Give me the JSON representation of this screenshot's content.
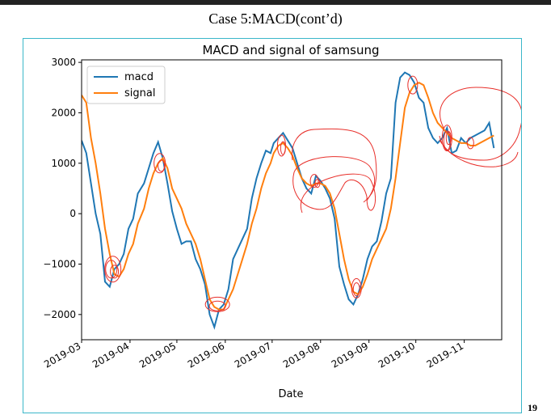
{
  "slide": {
    "title": "Case 5:MACD(cont’d)",
    "page_number": "19"
  },
  "chart_data": {
    "type": "line",
    "title": "MACD and signal of samsung",
    "xlabel": "Date",
    "ylabel": "",
    "xlim": [
      "2019-03-01",
      "2019-11-25"
    ],
    "ylim": [
      -2500,
      3050
    ],
    "x_tick_labels": [
      "2019-03",
      "2019-04",
      "2019-05",
      "2019-06",
      "2019-07",
      "2019-08",
      "2019-09",
      "2019-10",
      "2019-11"
    ],
    "x_ticks": [
      "2019-03-01",
      "2019-04-01",
      "2019-05-01",
      "2019-06-01",
      "2019-07-01",
      "2019-08-01",
      "2019-09-01",
      "2019-10-01",
      "2019-11-01"
    ],
    "y_ticks": [
      3000,
      2000,
      1000,
      0,
      -1000,
      -2000
    ],
    "y_tick_labels": [
      "3000",
      "2000",
      "1000",
      "0",
      "−1000",
      "−2000"
    ],
    "grid": false,
    "legend_position": "top-left",
    "series": [
      {
        "name": "macd",
        "color": "#1f77b4",
        "points": [
          [
            "2019-03-01",
            1450
          ],
          [
            "2019-03-04",
            1200
          ],
          [
            "2019-03-07",
            600
          ],
          [
            "2019-03-10",
            0
          ],
          [
            "2019-03-13",
            -400
          ],
          [
            "2019-03-16",
            -1350
          ],
          [
            "2019-03-19",
            -1450
          ],
          [
            "2019-03-22",
            -1100
          ],
          [
            "2019-03-25",
            -1000
          ],
          [
            "2019-03-28",
            -800
          ],
          [
            "2019-03-31",
            -300
          ],
          [
            "2019-04-03",
            -100
          ],
          [
            "2019-04-06",
            400
          ],
          [
            "2019-04-10",
            600
          ],
          [
            "2019-04-13",
            900
          ],
          [
            "2019-04-16",
            1200
          ],
          [
            "2019-04-19",
            1420
          ],
          [
            "2019-04-22",
            1100
          ],
          [
            "2019-04-25",
            600
          ],
          [
            "2019-04-28",
            50
          ],
          [
            "2019-05-01",
            -300
          ],
          [
            "2019-05-04",
            -600
          ],
          [
            "2019-05-07",
            -550
          ],
          [
            "2019-05-10",
            -550
          ],
          [
            "2019-05-13",
            -900
          ],
          [
            "2019-05-16",
            -1100
          ],
          [
            "2019-05-19",
            -1400
          ],
          [
            "2019-05-22",
            -2000
          ],
          [
            "2019-05-25",
            -2250
          ],
          [
            "2019-05-28",
            -1900
          ],
          [
            "2019-05-31",
            -1800
          ],
          [
            "2019-06-03",
            -1500
          ],
          [
            "2019-06-06",
            -900
          ],
          [
            "2019-06-09",
            -700
          ],
          [
            "2019-06-12",
            -500
          ],
          [
            "2019-06-15",
            -300
          ],
          [
            "2019-06-18",
            300
          ],
          [
            "2019-06-21",
            700
          ],
          [
            "2019-06-24",
            1000
          ],
          [
            "2019-06-27",
            1250
          ],
          [
            "2019-06-30",
            1200
          ],
          [
            "2019-07-02",
            1400
          ],
          [
            "2019-07-05",
            1500
          ],
          [
            "2019-07-08",
            1600
          ],
          [
            "2019-07-11",
            1450
          ],
          [
            "2019-07-14",
            1300
          ],
          [
            "2019-07-17",
            1000
          ],
          [
            "2019-07-20",
            700
          ],
          [
            "2019-07-23",
            500
          ],
          [
            "2019-07-26",
            400
          ],
          [
            "2019-07-29",
            750
          ],
          [
            "2019-08-01",
            650
          ],
          [
            "2019-08-04",
            500
          ],
          [
            "2019-08-07",
            300
          ],
          [
            "2019-08-10",
            -100
          ],
          [
            "2019-08-13",
            -1050
          ],
          [
            "2019-08-16",
            -1400
          ],
          [
            "2019-08-19",
            -1700
          ],
          [
            "2019-08-22",
            -1800
          ],
          [
            "2019-08-25",
            -1600
          ],
          [
            "2019-08-28",
            -1300
          ],
          [
            "2019-08-31",
            -900
          ],
          [
            "2019-09-03",
            -650
          ],
          [
            "2019-09-06",
            -550
          ],
          [
            "2019-09-09",
            -150
          ],
          [
            "2019-09-12",
            400
          ],
          [
            "2019-09-15",
            700
          ],
          [
            "2019-09-18",
            2200
          ],
          [
            "2019-09-21",
            2700
          ],
          [
            "2019-09-24",
            2800
          ],
          [
            "2019-09-27",
            2750
          ],
          [
            "2019-09-30",
            2600
          ],
          [
            "2019-10-03",
            2300
          ],
          [
            "2019-10-06",
            2200
          ],
          [
            "2019-10-09",
            1700
          ],
          [
            "2019-10-12",
            1500
          ],
          [
            "2019-10-15",
            1400
          ],
          [
            "2019-10-18",
            1500
          ],
          [
            "2019-10-21",
            1700
          ],
          [
            "2019-10-24",
            1200
          ],
          [
            "2019-10-27",
            1250
          ],
          [
            "2019-10-30",
            1500
          ],
          [
            "2019-11-02",
            1400
          ],
          [
            "2019-11-05",
            1500
          ],
          [
            "2019-11-08",
            1550
          ],
          [
            "2019-11-11",
            1600
          ],
          [
            "2019-11-14",
            1650
          ],
          [
            "2019-11-17",
            1800
          ],
          [
            "2019-11-20",
            1300
          ]
        ]
      },
      {
        "name": "signal",
        "color": "#ff7f0e",
        "points": [
          [
            "2019-03-01",
            2350
          ],
          [
            "2019-03-04",
            2200
          ],
          [
            "2019-03-07",
            1500
          ],
          [
            "2019-03-10",
            1000
          ],
          [
            "2019-03-13",
            400
          ],
          [
            "2019-03-16",
            -300
          ],
          [
            "2019-03-19",
            -800
          ],
          [
            "2019-03-22",
            -1200
          ],
          [
            "2019-03-25",
            -1250
          ],
          [
            "2019-03-28",
            -1100
          ],
          [
            "2019-03-31",
            -800
          ],
          [
            "2019-04-03",
            -600
          ],
          [
            "2019-04-06",
            -200
          ],
          [
            "2019-04-10",
            100
          ],
          [
            "2019-04-13",
            500
          ],
          [
            "2019-04-16",
            800
          ],
          [
            "2019-04-19",
            1000
          ],
          [
            "2019-04-22",
            1100
          ],
          [
            "2019-04-25",
            900
          ],
          [
            "2019-04-28",
            500
          ],
          [
            "2019-05-01",
            300
          ],
          [
            "2019-05-04",
            100
          ],
          [
            "2019-05-07",
            -200
          ],
          [
            "2019-05-10",
            -400
          ],
          [
            "2019-05-13",
            -600
          ],
          [
            "2019-05-16",
            -900
          ],
          [
            "2019-05-19",
            -1300
          ],
          [
            "2019-05-22",
            -1700
          ],
          [
            "2019-05-25",
            -1850
          ],
          [
            "2019-05-28",
            -1900
          ],
          [
            "2019-05-31",
            -1900
          ],
          [
            "2019-06-03",
            -1700
          ],
          [
            "2019-06-06",
            -1500
          ],
          [
            "2019-06-09",
            -1200
          ],
          [
            "2019-06-12",
            -900
          ],
          [
            "2019-06-15",
            -600
          ],
          [
            "2019-06-18",
            -200
          ],
          [
            "2019-06-21",
            100
          ],
          [
            "2019-06-24",
            500
          ],
          [
            "2019-06-27",
            800
          ],
          [
            "2019-06-30",
            1000
          ],
          [
            "2019-07-02",
            1200
          ],
          [
            "2019-07-05",
            1350
          ],
          [
            "2019-07-08",
            1400
          ],
          [
            "2019-07-11",
            1300
          ],
          [
            "2019-07-14",
            1150
          ],
          [
            "2019-07-17",
            900
          ],
          [
            "2019-07-20",
            700
          ],
          [
            "2019-07-23",
            600
          ],
          [
            "2019-07-26",
            550
          ],
          [
            "2019-07-29",
            600
          ],
          [
            "2019-08-01",
            600
          ],
          [
            "2019-08-04",
            550
          ],
          [
            "2019-08-07",
            400
          ],
          [
            "2019-08-10",
            100
          ],
          [
            "2019-08-13",
            -400
          ],
          [
            "2019-08-16",
            -900
          ],
          [
            "2019-08-19",
            -1300
          ],
          [
            "2019-08-22",
            -1550
          ],
          [
            "2019-08-25",
            -1600
          ],
          [
            "2019-08-28",
            -1450
          ],
          [
            "2019-08-31",
            -1200
          ],
          [
            "2019-09-03",
            -900
          ],
          [
            "2019-09-06",
            -700
          ],
          [
            "2019-09-09",
            -500
          ],
          [
            "2019-09-12",
            -300
          ],
          [
            "2019-09-15",
            100
          ],
          [
            "2019-09-18",
            700
          ],
          [
            "2019-09-21",
            1400
          ],
          [
            "2019-09-24",
            2100
          ],
          [
            "2019-09-27",
            2400
          ],
          [
            "2019-09-30",
            2550
          ],
          [
            "2019-10-03",
            2600
          ],
          [
            "2019-10-06",
            2550
          ],
          [
            "2019-10-09",
            2300
          ],
          [
            "2019-10-12",
            2000
          ],
          [
            "2019-10-15",
            1800
          ],
          [
            "2019-10-18",
            1700
          ],
          [
            "2019-10-21",
            1600
          ],
          [
            "2019-10-24",
            1500
          ],
          [
            "2019-10-27",
            1450
          ],
          [
            "2019-10-30",
            1400
          ],
          [
            "2019-11-02",
            1400
          ],
          [
            "2019-11-05",
            1350
          ],
          [
            "2019-11-08",
            1350
          ],
          [
            "2019-11-11",
            1400
          ],
          [
            "2019-11-14",
            1450
          ],
          [
            "2019-11-17",
            1500
          ],
          [
            "2019-11-20",
            1550
          ]
        ]
      }
    ],
    "annotations": {
      "color": "#e8302b",
      "description": "hand-drawn red circles around crossover points"
    }
  }
}
